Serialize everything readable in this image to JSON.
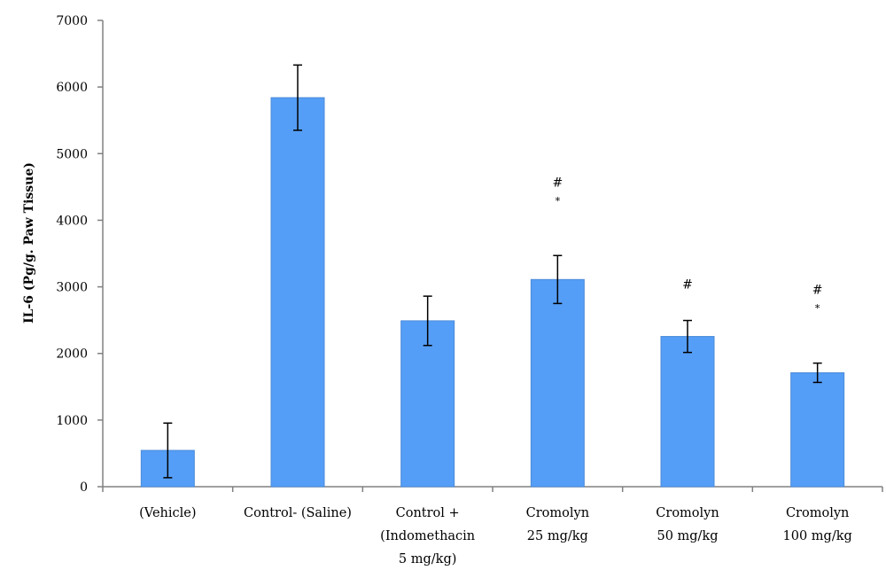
{
  "chart_data": {
    "type": "bar",
    "title": "",
    "xlabel": "",
    "ylabel": "IL-6 (Pg/g. Paw Tissue)",
    "ylim": [
      0,
      7000
    ],
    "yticks": [
      0,
      1000,
      2000,
      3000,
      4000,
      5000,
      6000,
      7000
    ],
    "grid": false,
    "legend": "none",
    "bar_color": "#559ef7",
    "bar_edge_color": "#4a8ad8",
    "categories": [
      [
        "(Vehicle)"
      ],
      [
        "Control- (Saline)"
      ],
      [
        "Control +",
        "(Indomethacin",
        "5 mg/kg)"
      ],
      [
        "Cromolyn",
        "25 mg/kg"
      ],
      [
        "Cromolyn",
        "50 mg/kg"
      ],
      [
        "Cromolyn",
        "100 mg/kg"
      ]
    ],
    "values": [
      545,
      5840,
      2490,
      3110,
      2255,
      1710
    ],
    "error": [
      410,
      490,
      370,
      360,
      240,
      145
    ],
    "annotations": [
      [],
      [],
      [],
      [
        "#",
        "*"
      ],
      [
        "#"
      ],
      [
        "#",
        "*"
      ]
    ]
  }
}
